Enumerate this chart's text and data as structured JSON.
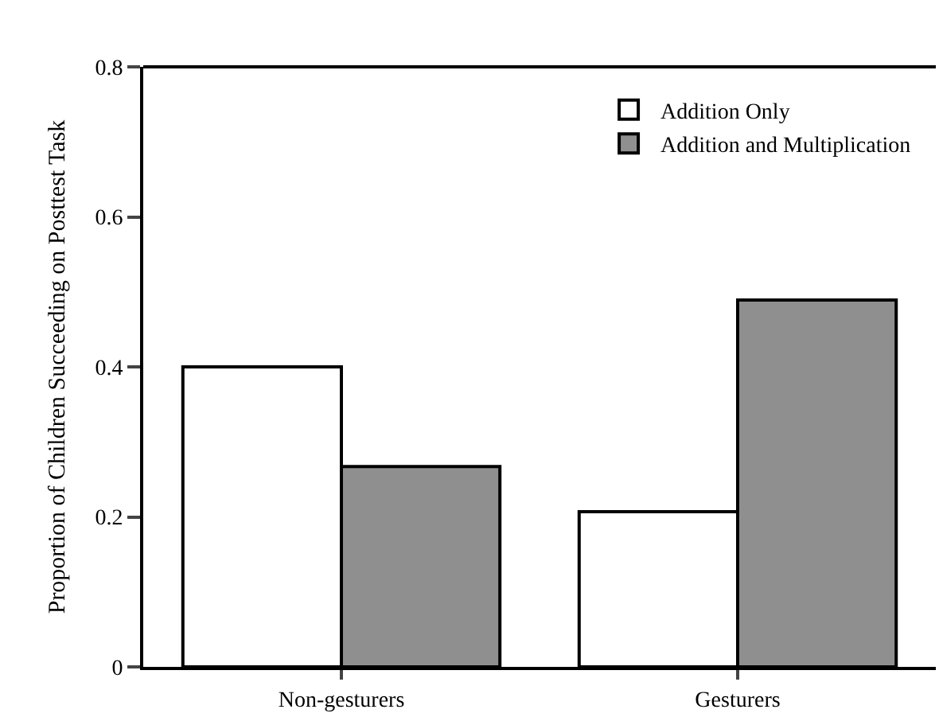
{
  "chart_data": {
    "type": "bar",
    "ylabel": "Proportion of Children Succeeding on Posttest Task",
    "categories": [
      "Non-gesturers",
      "Gesturers"
    ],
    "series": [
      {
        "name": "Addition Only",
        "color": "#ffffff",
        "values": [
          0.4,
          0.207
        ]
      },
      {
        "name": "Addition and Multiplication",
        "color": "#8f8f8f",
        "values": [
          0.267,
          0.489
        ]
      }
    ],
    "ylim": [
      0,
      0.8
    ],
    "yticks": [
      0,
      0.2,
      0.4,
      0.6,
      0.8
    ],
    "legend": "top right"
  }
}
